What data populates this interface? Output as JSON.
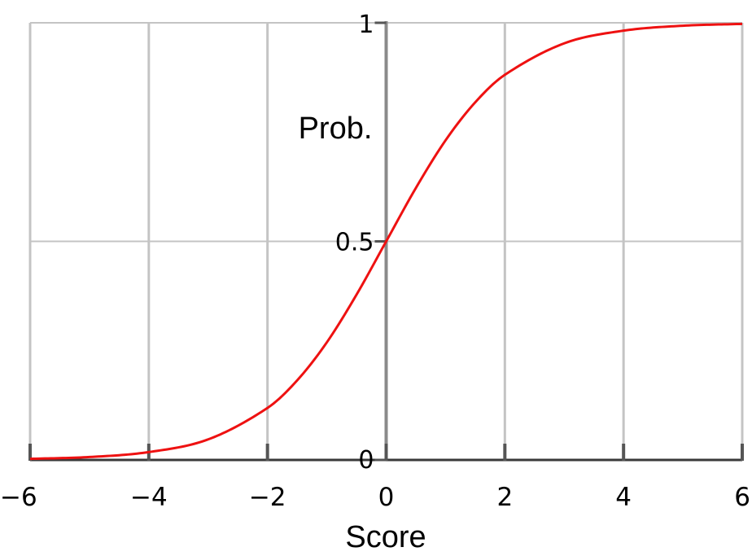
{
  "chart_data": {
    "type": "line",
    "title": "",
    "xlabel": "Score",
    "ylabel": "Prob.",
    "xlim": [
      -6,
      6
    ],
    "ylim": [
      0,
      1
    ],
    "grid": true,
    "x_ticks": [
      -6,
      -4,
      -2,
      0,
      2,
      4,
      6
    ],
    "x_tick_labels": [
      "−6",
      "−4",
      "−2",
      "0",
      "2",
      "4",
      "6"
    ],
    "y_ticks": [
      0,
      0.5,
      1
    ],
    "y_tick_labels": [
      "0",
      "0.5",
      "1"
    ],
    "series": [
      {
        "color": "#ee1111",
        "x": [
          -6,
          -5,
          -4,
          -3,
          -2,
          -1.5,
          -1,
          -0.5,
          0,
          0.5,
          1,
          1.5,
          2,
          3,
          4,
          5,
          6
        ],
        "y": [
          0.0025,
          0.0067,
          0.018,
          0.047,
          0.119,
          0.182,
          0.269,
          0.378,
          0.5,
          0.622,
          0.731,
          0.818,
          0.881,
          0.953,
          0.982,
          0.9933,
          0.9975
        ]
      }
    ]
  }
}
